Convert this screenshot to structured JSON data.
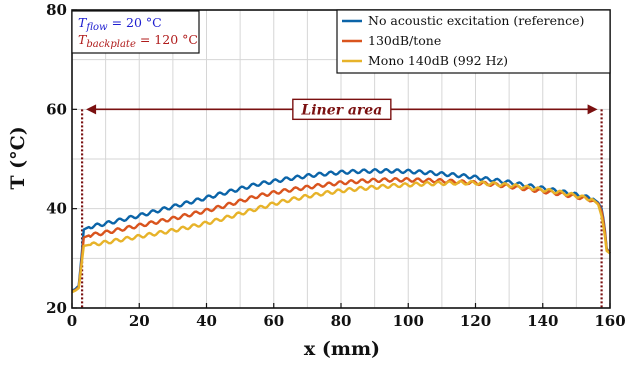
{
  "chart_data": {
    "type": "line",
    "xlabel": "x (mm)",
    "ylabel": "T (°C)",
    "xlim": [
      0,
      160
    ],
    "ylim": [
      20,
      80
    ],
    "xticks": [
      0,
      20,
      40,
      60,
      80,
      100,
      120,
      140,
      160
    ],
    "yticks": [
      20,
      40,
      60,
      80
    ],
    "grid": true,
    "legend_position": "top-right",
    "conditions": {
      "flow_label": "T",
      "flow_sub": "flow",
      "flow_value": " = 20 °C",
      "flow_color": "#1f1fd0",
      "backplate_label": "T",
      "backplate_sub": "backplate",
      "backplate_value": " = 120 °C",
      "backplate_color": "#b01c1c"
    },
    "annotation": {
      "text": "Liner area",
      "x_start": 3,
      "x_end": 157.5,
      "y": 60,
      "color": "#7a1010"
    },
    "series": [
      {
        "name": "No acoustic excitation (reference)",
        "color": "#0b64a8",
        "x": [
          0,
          1,
          2,
          2.8,
          3.5,
          5,
          10,
          15,
          20,
          25,
          30,
          35,
          40,
          45,
          50,
          55,
          60,
          65,
          70,
          75,
          80,
          85,
          90,
          95,
          100,
          105,
          110,
          115,
          120,
          125,
          130,
          135,
          140,
          145,
          150,
          155,
          156.5,
          157.5,
          158.3,
          159,
          160
        ],
        "y": [
          23.5,
          23.8,
          24.5,
          30,
          35.8,
          36.3,
          37,
          37.8,
          38.6,
          39.5,
          40.4,
          41.3,
          42.2,
          43.1,
          44,
          44.9,
          45.5,
          46.1,
          46.6,
          47,
          47.3,
          47.5,
          47.6,
          47.6,
          47.5,
          47.3,
          47,
          46.7,
          46.3,
          45.8,
          45.3,
          44.7,
          44.1,
          43.5,
          42.8,
          42,
          41.2,
          40,
          37,
          32,
          31
        ]
      },
      {
        "name": "130dB/tone",
        "color": "#d9541e",
        "x": [
          0,
          1,
          2,
          2.8,
          3.5,
          5,
          10,
          15,
          20,
          25,
          30,
          35,
          40,
          45,
          50,
          55,
          60,
          65,
          70,
          75,
          80,
          85,
          90,
          95,
          100,
          105,
          110,
          115,
          120,
          125,
          130,
          135,
          140,
          145,
          150,
          155,
          156.5,
          157.5,
          158.3,
          159,
          160
        ],
        "y": [
          23.3,
          23.6,
          24.2,
          29,
          34.2,
          34.6,
          35.2,
          35.9,
          36.6,
          37.3,
          38,
          38.8,
          39.6,
          40.5,
          41.5,
          42.5,
          43.2,
          43.8,
          44.3,
          44.8,
          45.2,
          45.5,
          45.7,
          45.8,
          45.8,
          45.7,
          45.6,
          45.4,
          45.2,
          44.9,
          44.5,
          44,
          43.5,
          43,
          42.4,
          41.7,
          41,
          39.5,
          36.5,
          31.8,
          31
        ]
      },
      {
        "name": "Mono 140dB (992 Hz)",
        "color": "#e7b32a",
        "x": [
          0,
          1,
          2,
          2.8,
          3.5,
          5,
          10,
          15,
          20,
          25,
          30,
          35,
          40,
          45,
          50,
          55,
          60,
          65,
          70,
          75,
          80,
          85,
          90,
          95,
          100,
          105,
          110,
          115,
          120,
          125,
          130,
          135,
          140,
          145,
          150,
          155,
          156.5,
          157.5,
          158.3,
          159,
          160
        ],
        "y": [
          23.2,
          23.5,
          24,
          28.5,
          32.5,
          32.7,
          33.2,
          33.8,
          34.4,
          35,
          35.6,
          36.3,
          37.1,
          38,
          39,
          40,
          41,
          41.8,
          42.5,
          43.1,
          43.6,
          44,
          44.3,
          44.6,
          44.8,
          45,
          45.1,
          45.2,
          45.2,
          45,
          44.7,
          44.3,
          43.8,
          43.3,
          42.6,
          41.8,
          40.8,
          38.5,
          35.5,
          31.5,
          31
        ]
      }
    ]
  }
}
